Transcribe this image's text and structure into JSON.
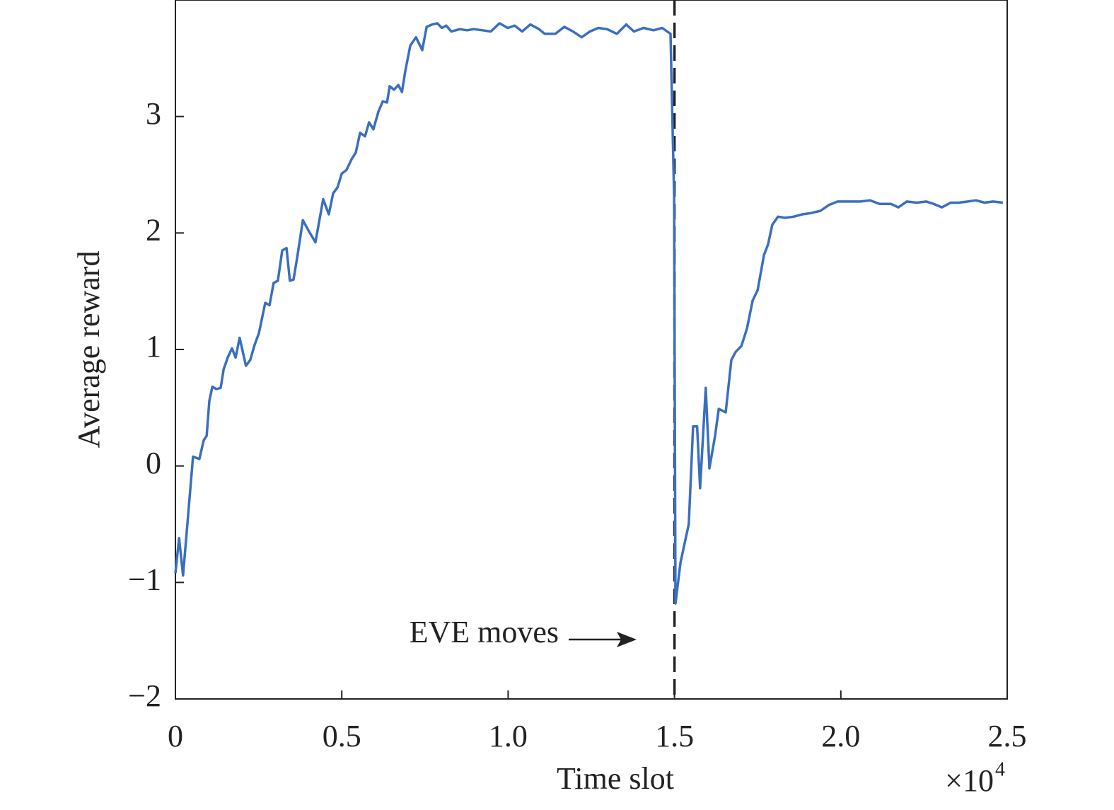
{
  "chart_data": {
    "type": "line",
    "xlabel": "Time slot",
    "ylabel": "Average reward",
    "x_multiplier": {
      "base": "×10",
      "exponent": "4"
    },
    "annotation": {
      "text": "EVE moves",
      "x": 1.5
    },
    "xlim": [
      0,
      2.5
    ],
    "ylim": [
      -2,
      4
    ],
    "xticks": [
      0,
      0.5,
      {
        "value": 1,
        "label": "1.0"
      },
      1.5,
      {
        "value": 2,
        "label": "2.0"
      },
      2.5
    ],
    "yticks": [
      {
        "value": -2,
        "label": "−2"
      },
      {
        "value": -1,
        "label": "−1"
      },
      0,
      1,
      2,
      3
    ],
    "x": [
      0,
      0.011,
      0.023,
      0.036,
      0.053,
      0.072,
      0.085,
      0.094,
      0.102,
      0.111,
      0.123,
      0.136,
      0.145,
      0.157,
      0.17,
      0.181,
      0.193,
      0.212,
      0.225,
      0.238,
      0.251,
      0.27,
      0.283,
      0.295,
      0.308,
      0.321,
      0.334,
      0.344,
      0.355,
      0.366,
      0.383,
      0.4,
      0.421,
      0.444,
      0.461,
      0.474,
      0.487,
      0.5,
      0.514,
      0.529,
      0.542,
      0.555,
      0.57,
      0.582,
      0.595,
      0.61,
      0.623,
      0.636,
      0.644,
      0.657,
      0.67,
      0.681,
      0.691,
      0.706,
      0.723,
      0.742,
      0.755,
      0.772,
      0.787,
      0.801,
      0.814,
      0.829,
      0.855,
      0.876,
      0.897,
      0.923,
      0.948,
      0.974,
      0.999,
      1.02,
      1.042,
      1.067,
      1.093,
      1.11,
      1.142,
      1.169,
      1.195,
      1.221,
      1.246,
      1.271,
      1.297,
      1.327,
      1.355,
      1.378,
      1.407,
      1.437,
      1.463,
      1.488,
      1.499,
      1.503,
      1.518,
      1.543,
      1.556,
      1.568,
      1.577,
      1.594,
      1.605,
      1.622,
      1.633,
      1.654,
      1.671,
      1.684,
      1.701,
      1.718,
      1.735,
      1.75,
      1.769,
      1.781,
      1.794,
      1.811,
      1.832,
      1.858,
      1.884,
      1.909,
      1.939,
      1.964,
      1.99,
      2.024,
      2.058,
      2.088,
      2.116,
      2.15,
      2.173,
      2.198,
      2.228,
      2.257,
      2.279,
      2.304,
      2.33,
      2.355,
      2.381,
      2.406,
      2.432,
      2.457,
      2.487
    ],
    "series": [
      {
        "name": "Average reward",
        "color": "#3a6fbf",
        "values": [
          -0.92,
          -0.62,
          -0.94,
          -0.5,
          0.08,
          0.06,
          0.22,
          0.26,
          0.56,
          0.68,
          0.66,
          0.67,
          0.83,
          0.93,
          1.01,
          0.93,
          1.1,
          0.86,
          0.91,
          1.04,
          1.14,
          1.4,
          1.38,
          1.57,
          1.59,
          1.85,
          1.87,
          1.59,
          1.6,
          1.79,
          2.11,
          2.02,
          1.92,
          2.29,
          2.16,
          2.34,
          2.39,
          2.51,
          2.54,
          2.63,
          2.69,
          2.86,
          2.83,
          2.95,
          2.89,
          3.04,
          3.13,
          3.12,
          3.26,
          3.23,
          3.27,
          3.21,
          3.39,
          3.61,
          3.68,
          3.57,
          3.77,
          3.79,
          3.8,
          3.76,
          3.78,
          3.73,
          3.75,
          3.74,
          3.75,
          3.74,
          3.73,
          3.8,
          3.76,
          3.78,
          3.73,
          3.79,
          3.75,
          3.71,
          3.71,
          3.77,
          3.73,
          3.68,
          3.73,
          3.76,
          3.75,
          3.71,
          3.79,
          3.73,
          3.76,
          3.74,
          3.76,
          3.71,
          2.3,
          -1.18,
          -0.83,
          -0.5,
          0.34,
          0.34,
          -0.19,
          0.67,
          -0.02,
          0.26,
          0.49,
          0.46,
          0.91,
          0.98,
          1.03,
          1.18,
          1.42,
          1.51,
          1.81,
          1.9,
          2.07,
          2.14,
          2.13,
          2.14,
          2.16,
          2.17,
          2.19,
          2.24,
          2.27,
          2.27,
          2.27,
          2.28,
          2.25,
          2.25,
          2.22,
          2.27,
          2.26,
          2.27,
          2.25,
          2.22,
          2.26,
          2.26,
          2.27,
          2.28,
          2.26,
          2.27,
          2.26
        ]
      }
    ]
  }
}
